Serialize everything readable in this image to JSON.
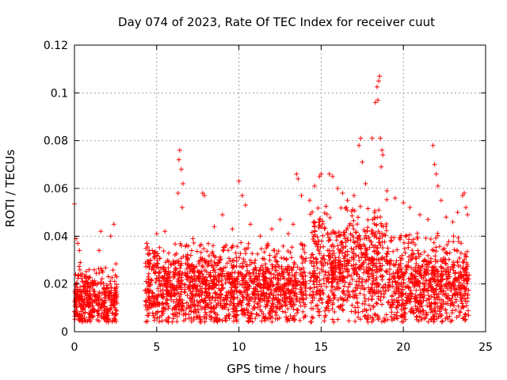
{
  "chart_data": {
    "type": "scatter",
    "title": "Day 074 of 2023, Rate Of TEC Index for receiver cuut",
    "xlabel": "GPS time / hours",
    "ylabel": "ROTI / TECUs",
    "xlim": [
      0,
      25
    ],
    "ylim": [
      0,
      0.12
    ],
    "x_ticks": [
      "0",
      "5",
      "10",
      "15",
      "20",
      "25"
    ],
    "y_ticks": [
      "0",
      "0.02",
      "0.04",
      "0.06",
      "0.08",
      "0.1",
      "0.12"
    ],
    "grid": true,
    "legend": "none",
    "marker": "+",
    "color": "#ff0000",
    "coverage": [
      [
        0,
        2.6
      ],
      [
        4.3,
        13.6
      ],
      [
        13.7,
        14.1
      ],
      [
        14.3,
        24.0
      ]
    ],
    "series": [
      {
        "points": [
          [
            0.0,
            0.0535
          ],
          [
            0.1,
            0.039
          ],
          [
            0.2,
            0.037
          ],
          [
            0.3,
            0.034
          ],
          [
            0.35,
            0.029
          ],
          [
            0.9,
            0.026
          ],
          [
            1.5,
            0.034
          ],
          [
            1.6,
            0.042
          ],
          [
            2.4,
            0.045
          ],
          [
            2.2,
            0.04
          ],
          [
            4.4,
            0.037
          ],
          [
            5.0,
            0.041
          ],
          [
            5.5,
            0.042
          ],
          [
            6.3,
            0.058
          ],
          [
            6.35,
            0.072
          ],
          [
            6.4,
            0.076
          ],
          [
            6.5,
            0.068
          ],
          [
            6.6,
            0.062
          ],
          [
            6.55,
            0.052
          ],
          [
            7.2,
            0.039
          ],
          [
            7.8,
            0.058
          ],
          [
            7.9,
            0.057
          ],
          [
            8.5,
            0.044
          ],
          [
            9.0,
            0.049
          ],
          [
            9.6,
            0.043
          ],
          [
            10.0,
            0.063
          ],
          [
            10.2,
            0.057
          ],
          [
            10.4,
            0.053
          ],
          [
            10.7,
            0.045
          ],
          [
            11.3,
            0.04
          ],
          [
            12.0,
            0.043
          ],
          [
            12.5,
            0.047
          ],
          [
            13.0,
            0.041
          ],
          [
            13.3,
            0.045
          ],
          [
            13.5,
            0.066
          ],
          [
            13.6,
            0.064
          ],
          [
            13.8,
            0.057
          ],
          [
            14.0,
            0.036
          ],
          [
            14.3,
            0.055
          ],
          [
            14.6,
            0.061
          ],
          [
            14.9,
            0.065
          ],
          [
            15.0,
            0.066
          ],
          [
            15.5,
            0.066
          ],
          [
            15.7,
            0.065
          ],
          [
            16.0,
            0.06
          ],
          [
            16.3,
            0.058
          ],
          [
            16.6,
            0.055
          ],
          [
            17.0,
            0.057
          ],
          [
            17.3,
            0.078
          ],
          [
            17.4,
            0.081
          ],
          [
            17.5,
            0.071
          ],
          [
            17.7,
            0.062
          ],
          [
            18.1,
            0.081
          ],
          [
            18.3,
            0.096
          ],
          [
            18.4,
            0.1025
          ],
          [
            18.5,
            0.105
          ],
          [
            18.55,
            0.107
          ],
          [
            18.45,
            0.097
          ],
          [
            18.6,
            0.081
          ],
          [
            18.7,
            0.076
          ],
          [
            18.75,
            0.074
          ],
          [
            18.65,
            0.069
          ],
          [
            19.0,
            0.059
          ],
          [
            19.5,
            0.056
          ],
          [
            20.0,
            0.054
          ],
          [
            20.4,
            0.052
          ],
          [
            21.0,
            0.049
          ],
          [
            21.5,
            0.047
          ],
          [
            21.8,
            0.078
          ],
          [
            21.9,
            0.07
          ],
          [
            22.0,
            0.066
          ],
          [
            22.1,
            0.061
          ],
          [
            22.3,
            0.055
          ],
          [
            22.6,
            0.048
          ],
          [
            23.0,
            0.046
          ],
          [
            23.3,
            0.05
          ],
          [
            23.6,
            0.057
          ],
          [
            23.7,
            0.058
          ],
          [
            23.8,
            0.052
          ],
          [
            23.9,
            0.049
          ]
        ]
      }
    ]
  }
}
